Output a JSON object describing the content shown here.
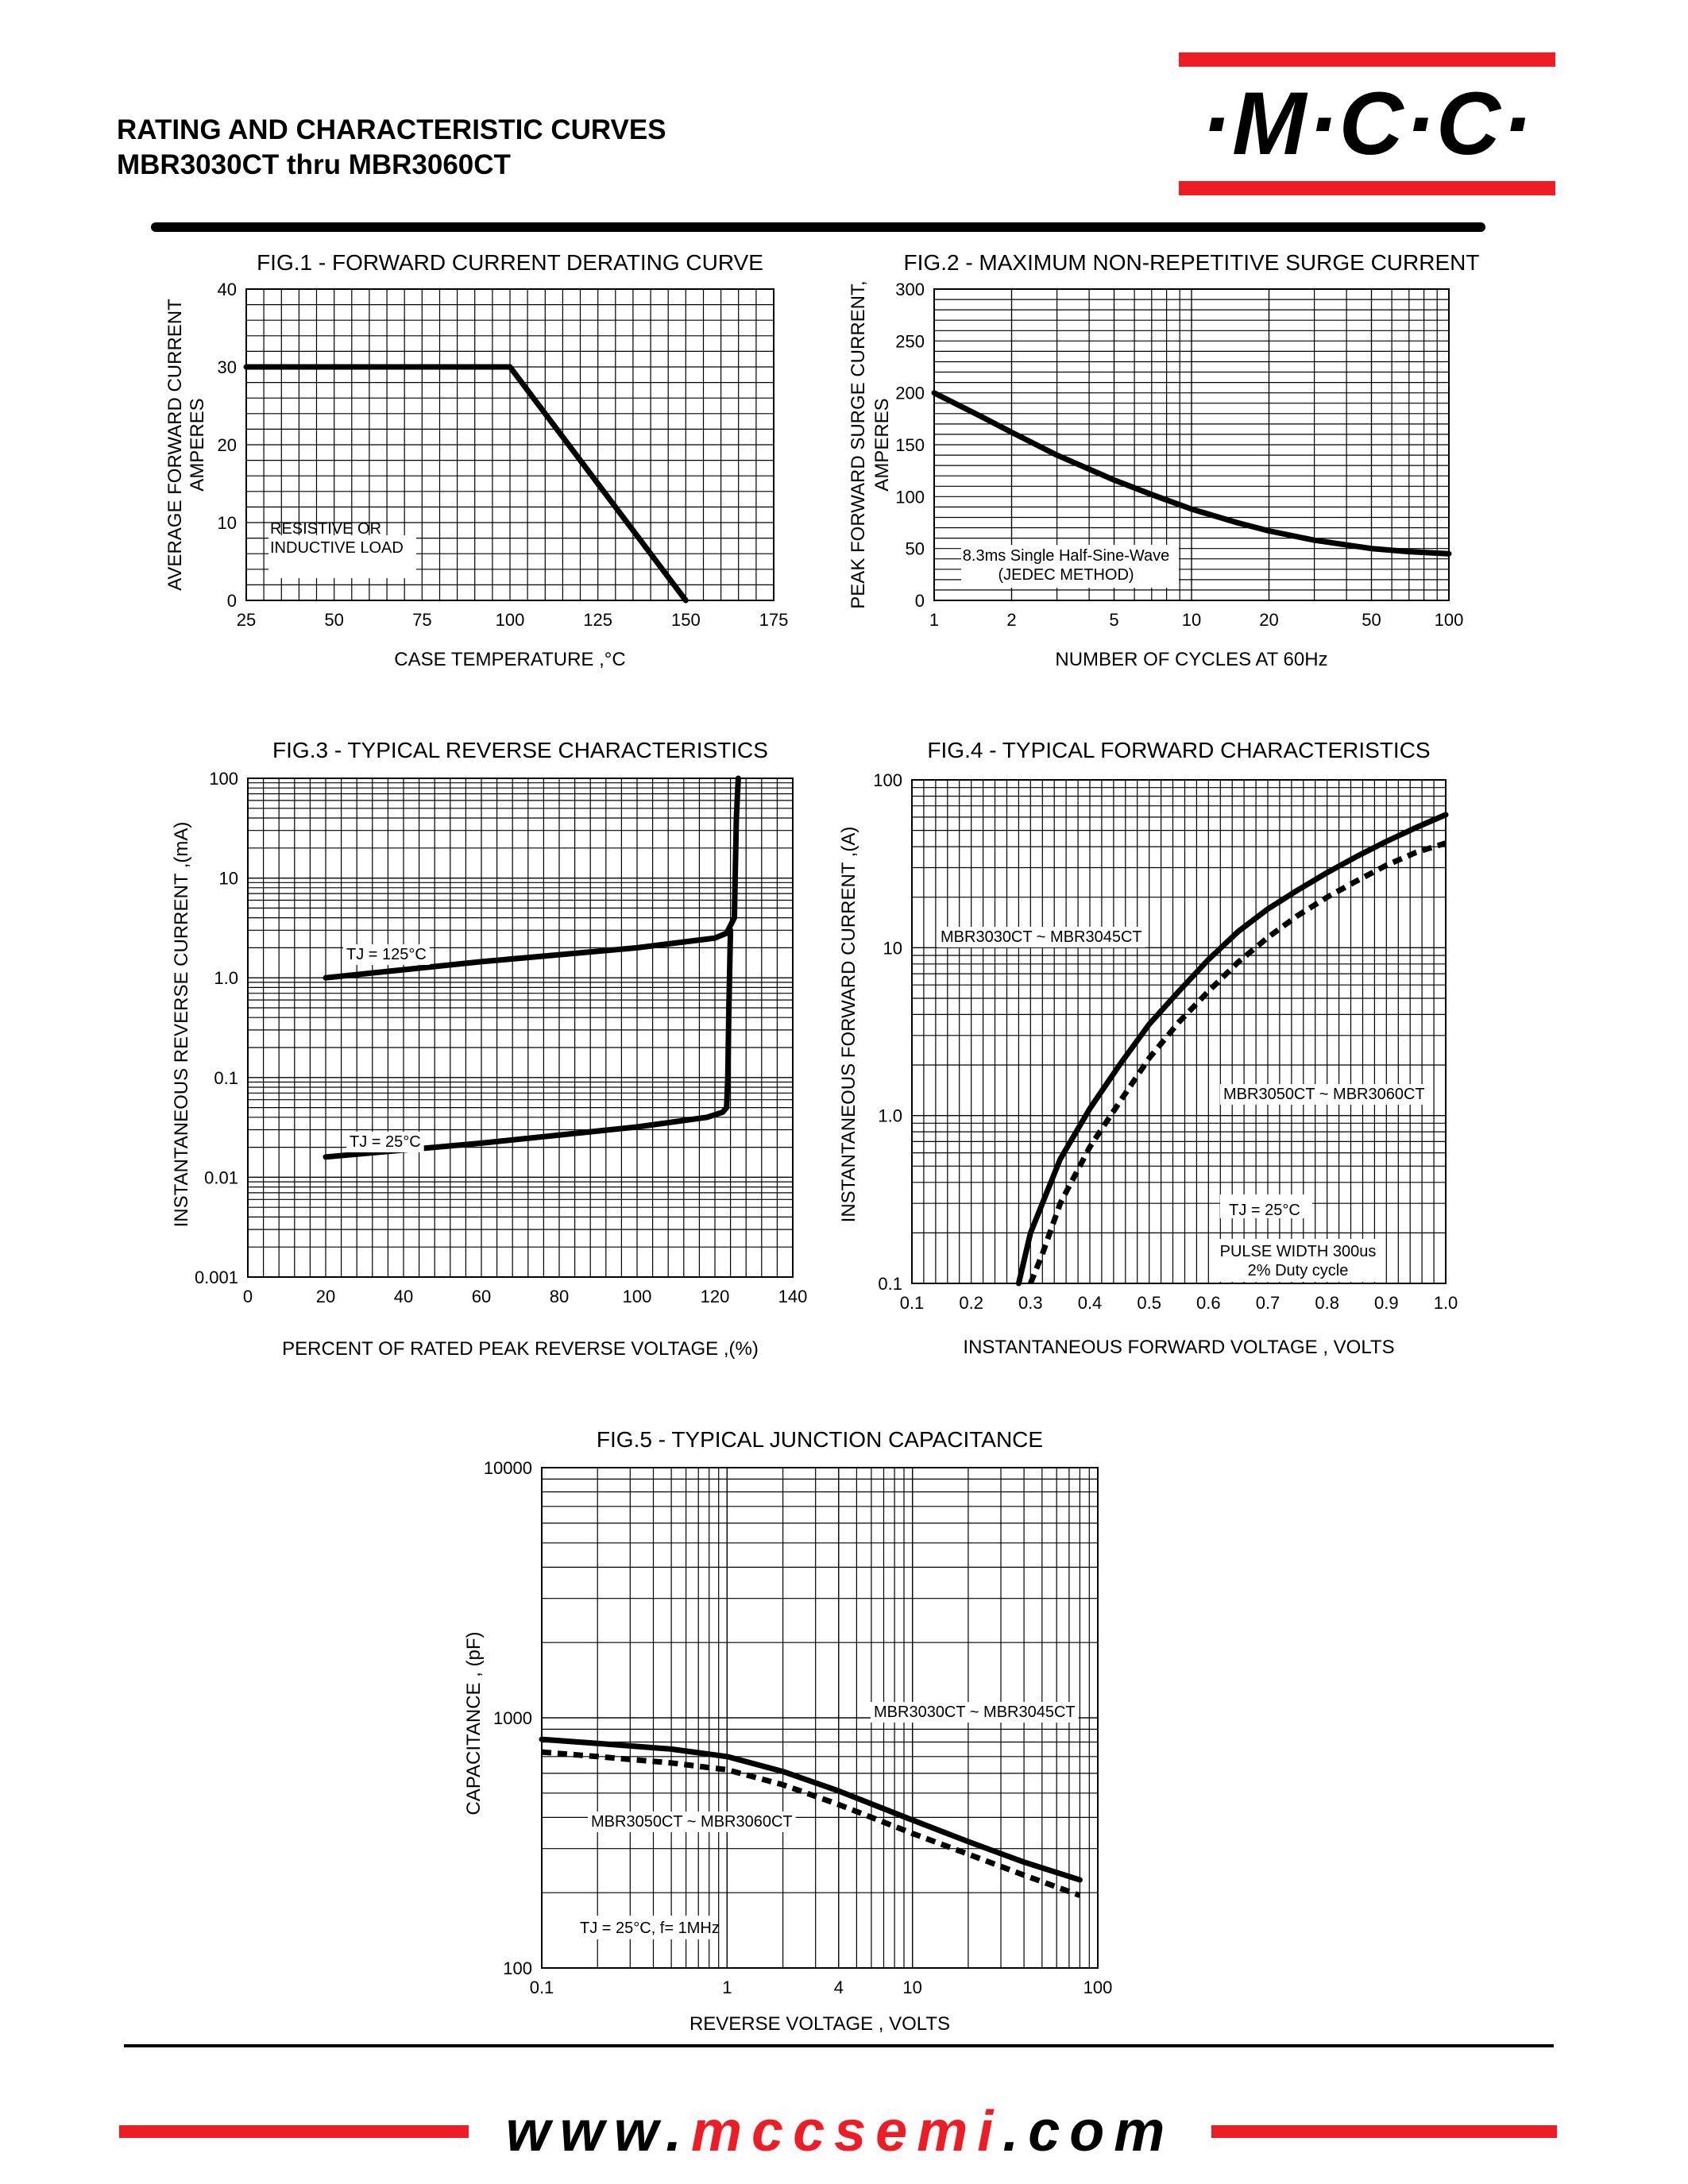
{
  "header": {
    "title_line1": "RATING AND CHARACTERISTIC CURVES",
    "title_line2": "MBR3030CT thru MBR3060CT",
    "logo_text": "·M·C·C·",
    "brand_red": "#ee1c25"
  },
  "footer": {
    "url_prefix": "www.",
    "url_middle": "mccsemi",
    "url_suffix": ".com"
  },
  "chart_data": [
    {
      "id": "fig1",
      "type": "line",
      "title": "FIG.1 - FORWARD CURRENT DERATING CURVE",
      "xlabel": "CASE TEMPERATURE ,°C",
      "ylabel_line1": "AVERAGE FORWARD CURRENT",
      "ylabel_line2": "AMPERES",
      "xscale": "linear",
      "yscale": "linear",
      "xlim": [
        25,
        175
      ],
      "ylim": [
        0,
        40
      ],
      "xticks": [
        25,
        50,
        75,
        100,
        125,
        150,
        175
      ],
      "xtick_labels": [
        "25",
        "50",
        "75",
        "100",
        "125",
        "150",
        "175"
      ],
      "yticks": [
        0,
        10,
        20,
        30,
        40
      ],
      "ytick_labels": [
        "0",
        "10",
        "20",
        "30",
        "40"
      ],
      "grid": true,
      "series": [
        {
          "style": "solid",
          "x": [
            25,
            100,
            150
          ],
          "y": [
            30,
            30,
            0
          ]
        }
      ],
      "annotations": [
        {
          "text_line1": "RESISTIVE OR",
          "text_line2": "INDUCTIVE LOAD"
        }
      ]
    },
    {
      "id": "fig2",
      "type": "line",
      "title": "FIG.2 - MAXIMUM NON-REPETITIVE SURGE CURRENT",
      "xlabel": "NUMBER OF CYCLES AT 60Hz",
      "ylabel_line1": "PEAK FORWARD SURGE CURRENT,",
      "ylabel_line2": "AMPERES",
      "xscale": "log",
      "yscale": "linear",
      "xlim": [
        1,
        100
      ],
      "ylim": [
        0,
        300
      ],
      "xticks": [
        1,
        2,
        5,
        10,
        20,
        50,
        100
      ],
      "xtick_labels": [
        "1",
        "2",
        "5",
        "10",
        "20",
        "50",
        "100"
      ],
      "yticks": [
        0,
        50,
        100,
        150,
        200,
        250,
        300
      ],
      "ytick_labels": [
        "0",
        "50",
        "100",
        "150",
        "200",
        "250",
        "300"
      ],
      "grid": true,
      "series": [
        {
          "style": "solid",
          "x": [
            1,
            1.5,
            2,
            3,
            5,
            7,
            10,
            15,
            20,
            30,
            50,
            70,
            100
          ],
          "y": [
            200,
            178,
            162,
            140,
            116,
            102,
            88,
            75,
            67,
            58,
            50,
            47,
            45
          ]
        }
      ],
      "annotations": [
        {
          "text_line1": "8.3ms Single Half-Sine-Wave",
          "text_line2": "(JEDEC METHOD)"
        }
      ]
    },
    {
      "id": "fig3",
      "type": "line",
      "title": "FIG.3 - TYPICAL REVERSE CHARACTERISTICS",
      "xlabel": "PERCENT OF RATED PEAK REVERSE VOLTAGE ,(%)",
      "ylabel_line1": "INSTANTANEOUS REVERSE CURRENT ,(mA)",
      "ylabel_line2": "",
      "xscale": "linear",
      "yscale": "log",
      "xlim": [
        0,
        140
      ],
      "ylim": [
        0.001,
        100
      ],
      "xticks": [
        0,
        20,
        40,
        60,
        80,
        100,
        120,
        140
      ],
      "xtick_labels": [
        "0",
        "20",
        "40",
        "60",
        "80",
        "100",
        "120",
        "140"
      ],
      "yticks": [
        0.001,
        0.01,
        0.1,
        1,
        10,
        100
      ],
      "ytick_labels": [
        "0.001",
        "0.01",
        "0.1",
        "1.0",
        "10",
        "100"
      ],
      "grid": true,
      "series": [
        {
          "name": "TJ = 125°C",
          "style": "solid",
          "x": [
            20,
            60,
            100,
            120,
            123,
            125,
            125.2,
            125.5,
            126
          ],
          "y": [
            1.0,
            1.45,
            2.0,
            2.5,
            2.8,
            4.0,
            10,
            40,
            100
          ]
        },
        {
          "name": "TJ = 25°C",
          "style": "solid",
          "x": [
            20,
            60,
            100,
            118,
            122,
            123,
            123.3,
            123.6,
            124
          ],
          "y": [
            0.016,
            0.022,
            0.032,
            0.04,
            0.045,
            0.05,
            0.1,
            0.5,
            3.0
          ]
        }
      ]
    },
    {
      "id": "fig4",
      "type": "line",
      "title": "FIG.4 - TYPICAL FORWARD CHARACTERISTICS",
      "xlabel": "INSTANTANEOUS FORWARD VOLTAGE , VOLTS",
      "ylabel_line1": "INSTANTANEOUS  FORWARD CURRENT ,(A)",
      "ylabel_line2": "",
      "xscale": "linear",
      "yscale": "log",
      "xlim": [
        0.1,
        1.0
      ],
      "ylim": [
        0.1,
        100
      ],
      "xticks": [
        0.1,
        0.2,
        0.3,
        0.4,
        0.5,
        0.6,
        0.7,
        0.8,
        0.9,
        1.0
      ],
      "xtick_labels": [
        "0.1",
        "0.2",
        "0.3",
        "0.4",
        "0.5",
        "0.6",
        "0.7",
        "0.8",
        "0.9",
        "1.0"
      ],
      "yticks": [
        0.1,
        1,
        10,
        100
      ],
      "ytick_labels": [
        "0.1",
        "1.0",
        "10",
        "100"
      ],
      "grid": true,
      "series": [
        {
          "name": "MBR3030CT ~ MBR3045CT",
          "style": "solid",
          "x": [
            0.28,
            0.3,
            0.35,
            0.4,
            0.45,
            0.5,
            0.55,
            0.6,
            0.65,
            0.7,
            0.75,
            0.8,
            0.85,
            0.9,
            0.95,
            1.0
          ],
          "y": [
            0.1,
            0.2,
            0.55,
            1.1,
            2.0,
            3.5,
            5.5,
            8.5,
            12.5,
            17,
            22,
            28,
            35,
            43,
            52,
            62
          ]
        },
        {
          "name": "MBR3050CT ~ MBR3060CT",
          "style": "dashed",
          "x": [
            0.3,
            0.32,
            0.35,
            0.4,
            0.45,
            0.5,
            0.55,
            0.6,
            0.65,
            0.7,
            0.75,
            0.8,
            0.85,
            0.9,
            0.95,
            1.0
          ],
          "y": [
            0.1,
            0.15,
            0.3,
            0.65,
            1.2,
            2.2,
            3.6,
            5.5,
            8.2,
            11.5,
            15.5,
            20,
            25,
            31,
            37,
            42
          ]
        }
      ],
      "annotations": [
        {
          "text_line1": "TJ = 25°C",
          "text_line2": ""
        },
        {
          "text_line1": "PULSE WIDTH 300us",
          "text_line2": "2% Duty cycle"
        }
      ]
    },
    {
      "id": "fig5",
      "type": "line",
      "title": "FIG.5 - TYPICAL JUNCTION CAPACITANCE",
      "xlabel": "REVERSE VOLTAGE , VOLTS",
      "ylabel_line1": "CAPACITANCE , (pF)",
      "ylabel_line2": "",
      "xscale": "log",
      "yscale": "log",
      "xlim": [
        0.1,
        100
      ],
      "ylim": [
        100,
        10000
      ],
      "xticks": [
        0.1,
        1,
        4,
        10,
        100
      ],
      "xtick_labels": [
        "0.1",
        "1",
        "4",
        "10",
        "100"
      ],
      "yticks": [
        100,
        1000,
        10000
      ],
      "ytick_labels": [
        "100",
        "1000",
        "10000"
      ],
      "grid": true,
      "series": [
        {
          "name": "MBR3030CT ~ MBR3045CT",
          "style": "solid",
          "x": [
            0.1,
            0.2,
            0.5,
            1,
            2,
            4,
            10,
            20,
            40,
            80
          ],
          "y": [
            820,
            790,
            750,
            700,
            610,
            510,
            390,
            320,
            265,
            225
          ]
        },
        {
          "name": "MBR3050CT ~ MBR3060CT",
          "style": "dashed",
          "x": [
            0.1,
            0.2,
            0.5,
            1,
            2,
            4,
            10,
            20,
            40,
            80
          ],
          "y": [
            730,
            700,
            660,
            620,
            540,
            450,
            345,
            285,
            235,
            195
          ]
        }
      ],
      "annotations": [
        {
          "text_line1": "TJ = 25°C, f= 1MHz",
          "text_line2": ""
        }
      ]
    }
  ]
}
